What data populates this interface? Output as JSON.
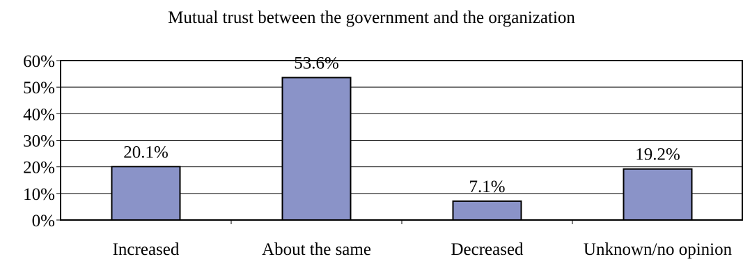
{
  "chart_data": {
    "type": "bar",
    "title": "Mutual trust between the government and the organization",
    "categories": [
      "Increased",
      "About the same",
      "Decreased",
      "Unknown/no opinion"
    ],
    "values": [
      20.1,
      53.6,
      7.1,
      19.2
    ],
    "data_labels": [
      "20.1%",
      "53.6%",
      "7.1%",
      "19.2%"
    ],
    "yticks": [
      "0%",
      "10%",
      "20%",
      "30%",
      "40%",
      "50%",
      "60%"
    ],
    "ylim": [
      0,
      60
    ],
    "xlabel": "",
    "ylabel": "",
    "grid": true,
    "legend": "none",
    "bar_color": "#8a93c8"
  }
}
